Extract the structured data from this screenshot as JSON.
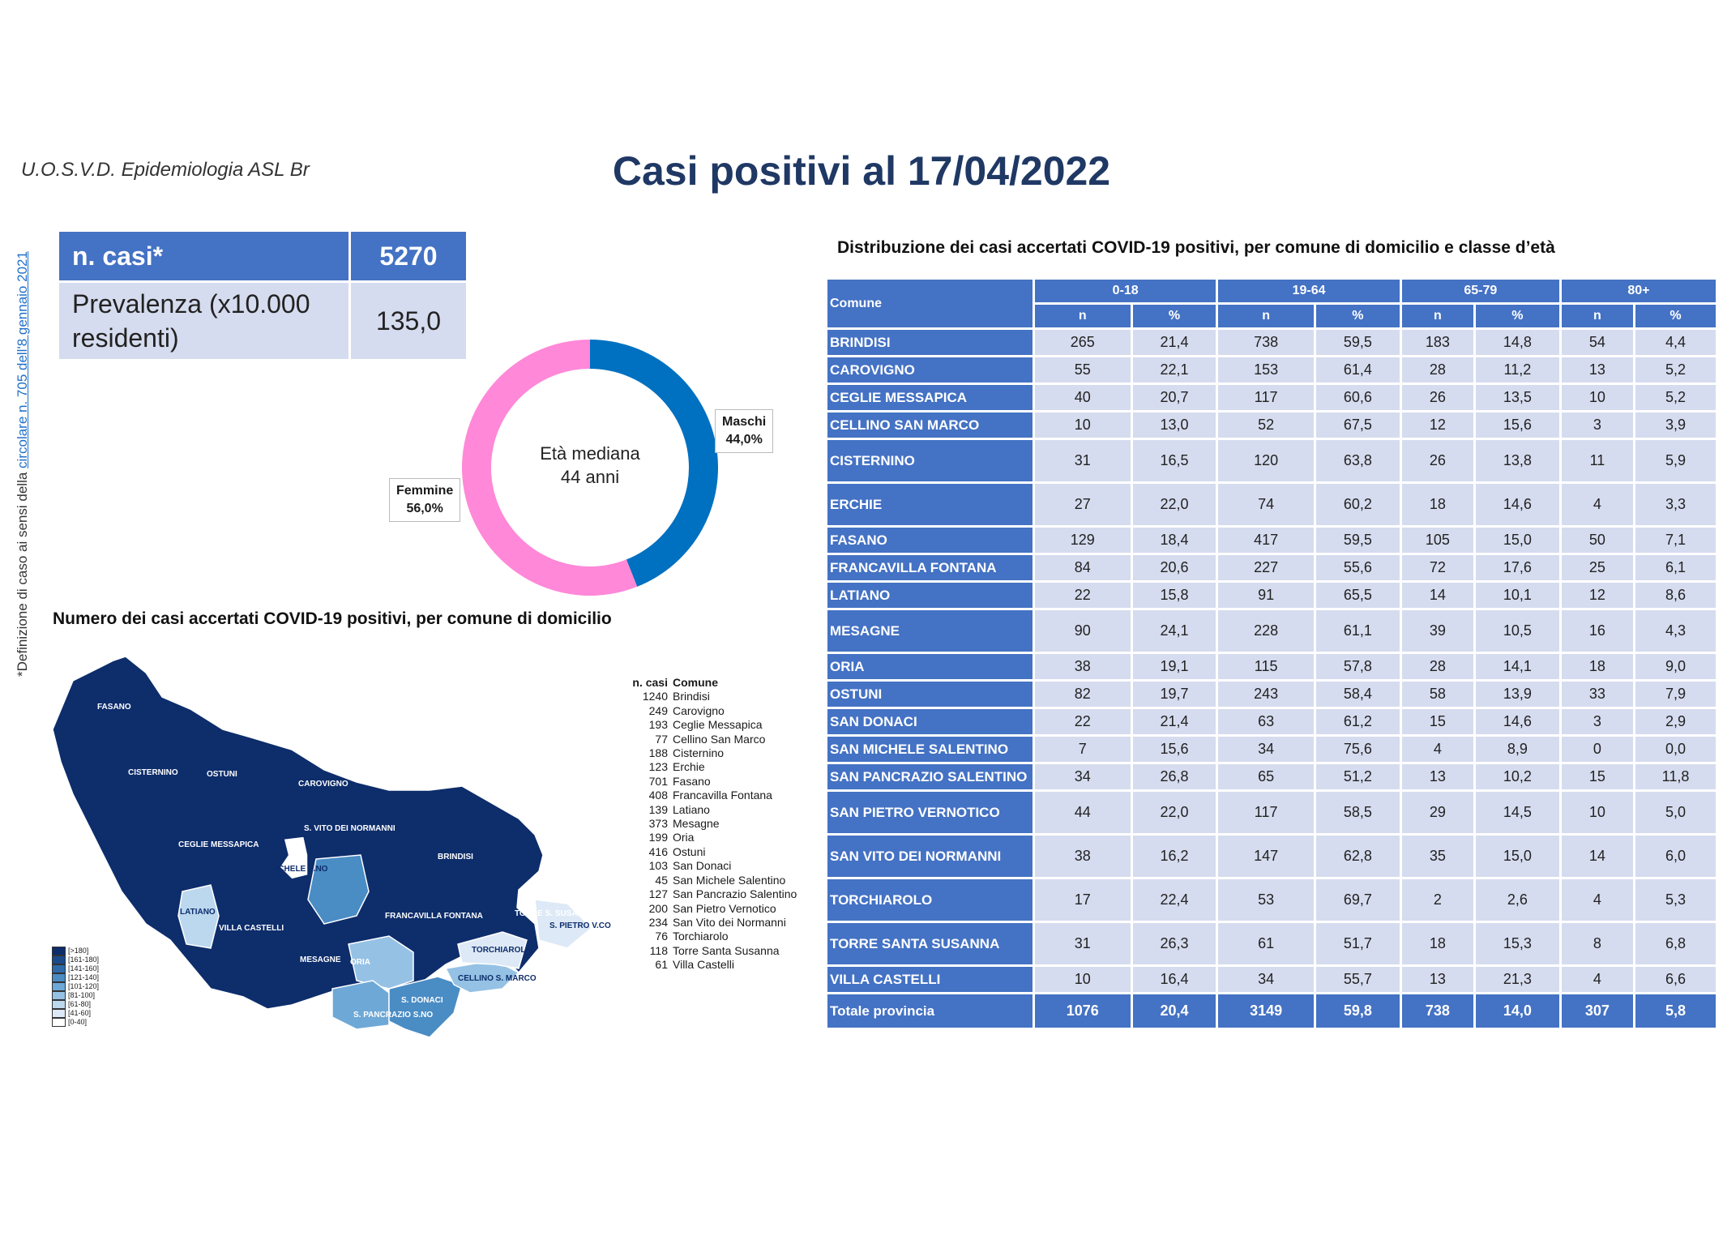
{
  "header": {
    "org": "U.O.S.V.D. Epidemiologia ASL Br",
    "title": "Casi positivi al 17/04/2022"
  },
  "footnote": {
    "prefix": "*Definizione di caso ai sensi della ",
    "link": "circolare n. 705 dell'8 gennaio 2021"
  },
  "kpi": {
    "cases_label": "n. casi*",
    "cases_value": "5270",
    "prevalence_label": "Prevalenza (x10.000 residenti)",
    "prevalence_value": "135,0"
  },
  "donut": {
    "center_line1": "Età mediana",
    "center_line2": "44 anni",
    "male_label": "Maschi",
    "male_value": "44,0%",
    "female_label": "Femmine",
    "female_value": "56,0%",
    "male_pct": 44.0,
    "male_color": "#0070c0",
    "female_color": "#ff88d8"
  },
  "map": {
    "title": "Numero dei casi accertati COVID-19 positivi, per comune di domicilio",
    "labels": [
      "FASANO",
      "CISTERNINO",
      "OSTUNI",
      "CAROVIGNO",
      "CEGLIE MESSAPICA",
      "S. VITO DEI NORMANNI",
      "S. MICHELE S.NO",
      "BRINDISI",
      "LATIANO",
      "VILLA CASTELLI",
      "FRANCAVILLA FONTANA",
      "MESAGNE",
      "ORIA",
      "TORRE S. SUSANNA",
      "S. PIETRO V.CO",
      "TORCHIAROLO",
      "CELLINO S. MARCO",
      "S. DONACI",
      "S. PANCRAZIO S.NO",
      "ERCHIE"
    ],
    "list_header_n": "n. casi",
    "list_header_c": "Comune",
    "list": [
      {
        "n": "1240",
        "c": "Brindisi"
      },
      {
        "n": "249",
        "c": "Carovigno"
      },
      {
        "n": "193",
        "c": "Ceglie Messapica"
      },
      {
        "n": "77",
        "c": "Cellino San Marco"
      },
      {
        "n": "188",
        "c": "Cisternino"
      },
      {
        "n": "123",
        "c": "Erchie"
      },
      {
        "n": "701",
        "c": "Fasano"
      },
      {
        "n": "408",
        "c": "Francavilla Fontana"
      },
      {
        "n": "139",
        "c": "Latiano"
      },
      {
        "n": "373",
        "c": "Mesagne"
      },
      {
        "n": "199",
        "c": "Oria"
      },
      {
        "n": "416",
        "c": "Ostuni"
      },
      {
        "n": "103",
        "c": "San Donaci"
      },
      {
        "n": "45",
        "c": "San Michele Salentino"
      },
      {
        "n": "127",
        "c": "San Pancrazio Salentino"
      },
      {
        "n": "200",
        "c": "San Pietro Vernotico"
      },
      {
        "n": "234",
        "c": "San Vito dei Normanni"
      },
      {
        "n": "76",
        "c": "Torchiarolo"
      },
      {
        "n": "118",
        "c": "Torre Santa Susanna"
      },
      {
        "n": "61",
        "c": "Villa Castelli"
      }
    ],
    "scale": [
      {
        "label": "[>180]",
        "color": "#0d2d6b"
      },
      {
        "label": "[161-180]",
        "color": "#1b4a8a"
      },
      {
        "label": "[141-160]",
        "color": "#2e6aa8"
      },
      {
        "label": "[121-140]",
        "color": "#4a8cc4"
      },
      {
        "label": "[101-120]",
        "color": "#6ea8d6"
      },
      {
        "label": "[81-100]",
        "color": "#95c1e4"
      },
      {
        "label": "[61-80]",
        "color": "#bcd8ef"
      },
      {
        "label": "[41-60]",
        "color": "#dde9f6"
      },
      {
        "label": "[0-40]",
        "color": "#ffffff"
      }
    ]
  },
  "table": {
    "title": "Distribuzione dei casi accertati COVID-19 positivi, per comune di domicilio e classe d’età",
    "col_comune": "Comune",
    "groups": [
      "0-18",
      "19-64",
      "65-79",
      "80+"
    ],
    "sub_n": "n",
    "sub_p": "%",
    "rows": [
      [
        "BRINDISI",
        "265",
        "21,4",
        "738",
        "59,5",
        "183",
        "14,8",
        "54",
        "4,4"
      ],
      [
        "CAROVIGNO",
        "55",
        "22,1",
        "153",
        "61,4",
        "28",
        "11,2",
        "13",
        "5,2"
      ],
      [
        "CEGLIE MESSAPICA",
        "40",
        "20,7",
        "117",
        "60,6",
        "26",
        "13,5",
        "10",
        "5,2"
      ],
      [
        "CELLINO SAN MARCO",
        "10",
        "13,0",
        "52",
        "67,5",
        "12",
        "15,6",
        "3",
        "3,9"
      ],
      [
        "CISTERNINO",
        "31",
        "16,5",
        "120",
        "63,8",
        "26",
        "13,8",
        "11",
        "5,9"
      ],
      [
        "ERCHIE",
        "27",
        "22,0",
        "74",
        "60,2",
        "18",
        "14,6",
        "4",
        "3,3"
      ],
      [
        "FASANO",
        "129",
        "18,4",
        "417",
        "59,5",
        "105",
        "15,0",
        "50",
        "7,1"
      ],
      [
        "FRANCAVILLA FONTANA",
        "84",
        "20,6",
        "227",
        "55,6",
        "72",
        "17,6",
        "25",
        "6,1"
      ],
      [
        "LATIANO",
        "22",
        "15,8",
        "91",
        "65,5",
        "14",
        "10,1",
        "12",
        "8,6"
      ],
      [
        "MESAGNE",
        "90",
        "24,1",
        "228",
        "61,1",
        "39",
        "10,5",
        "16",
        "4,3"
      ],
      [
        "ORIA",
        "38",
        "19,1",
        "115",
        "57,8",
        "28",
        "14,1",
        "18",
        "9,0"
      ],
      [
        "OSTUNI",
        "82",
        "19,7",
        "243",
        "58,4",
        "58",
        "13,9",
        "33",
        "7,9"
      ],
      [
        "SAN DONACI",
        "22",
        "21,4",
        "63",
        "61,2",
        "15",
        "14,6",
        "3",
        "2,9"
      ],
      [
        "SAN MICHELE SALENTINO",
        "7",
        "15,6",
        "34",
        "75,6",
        "4",
        "8,9",
        "0",
        "0,0"
      ],
      [
        "SAN PANCRAZIO SALENTINO",
        "34",
        "26,8",
        "65",
        "51,2",
        "13",
        "10,2",
        "15",
        "11,8"
      ],
      [
        "SAN PIETRO VERNOTICO",
        "44",
        "22,0",
        "117",
        "58,5",
        "29",
        "14,5",
        "10",
        "5,0"
      ],
      [
        "SAN VITO DEI NORMANNI",
        "38",
        "16,2",
        "147",
        "62,8",
        "35",
        "15,0",
        "14",
        "6,0"
      ],
      [
        "TORCHIAROLO",
        "17",
        "22,4",
        "53",
        "69,7",
        "2",
        "2,6",
        "4",
        "5,3"
      ],
      [
        "TORRE SANTA SUSANNA",
        "31",
        "26,3",
        "61",
        "51,7",
        "18",
        "15,3",
        "8",
        "6,8"
      ],
      [
        "VILLA CASTELLI",
        "10",
        "16,4",
        "34",
        "55,7",
        "13",
        "21,3",
        "4",
        "6,6"
      ]
    ],
    "total": [
      "Totale provincia",
      "1076",
      "20,4",
      "3149",
      "59,8",
      "738",
      "14,0",
      "307",
      "5,8"
    ]
  }
}
